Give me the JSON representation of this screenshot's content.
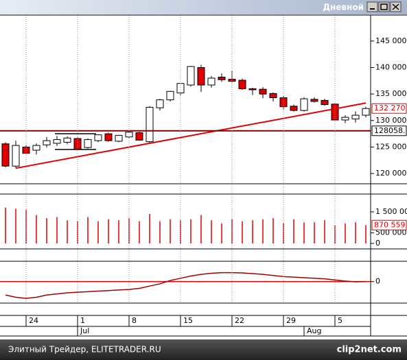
{
  "window": {
    "title": "Дневной"
  },
  "footer": {
    "text": "Элитный Трейдер, ELITETRADER.RU",
    "watermark": "clip2net.com"
  },
  "chart_data": [
    {
      "type": "candlestick",
      "categories": [
        null,
        null,
        "24",
        null,
        null,
        null,
        null,
        "1",
        null,
        null,
        null,
        null,
        "8",
        null,
        null,
        null,
        null,
        "15",
        null,
        null,
        null,
        null,
        "22",
        null,
        null,
        null,
        null,
        "29",
        null,
        null,
        null,
        null,
        "5",
        null,
        null,
        null
      ],
      "months": [
        null,
        null,
        null,
        null,
        null,
        null,
        null,
        "Jul",
        null,
        null,
        null,
        null,
        null,
        null,
        null,
        null,
        null,
        null,
        null,
        null,
        null,
        null,
        null,
        null,
        null,
        null,
        null,
        null,
        null,
        "Aug",
        null,
        null,
        null,
        null,
        null,
        null
      ],
      "open": [
        125600,
        121400,
        125000,
        124400,
        125400,
        125700,
        125900,
        126600,
        124900,
        126200,
        127500,
        126100,
        126900,
        127700,
        126000,
        132400,
        133900,
        135200,
        136700,
        140000,
        136700,
        138200,
        137800,
        137600,
        136000,
        135900,
        135100,
        134300,
        132700,
        131900,
        134000,
        133800,
        133100,
        130100,
        130300,
        131000
      ],
      "high": [
        125900,
        126200,
        125400,
        125700,
        126900,
        127100,
        127000,
        126800,
        126600,
        127400,
        127700,
        127300,
        128100,
        127900,
        132700,
        134100,
        135600,
        137100,
        140300,
        140500,
        138400,
        138900,
        139300,
        137900,
        136200,
        136300,
        135300,
        134600,
        133000,
        134400,
        134400,
        134100,
        133300,
        131000,
        131700,
        132600
      ],
      "low": [
        121200,
        121000,
        123700,
        123600,
        124900,
        125200,
        125500,
        124500,
        124700,
        125900,
        126000,
        125900,
        126700,
        126200,
        125800,
        131900,
        133600,
        134800,
        136400,
        135400,
        136200,
        137300,
        137200,
        135800,
        134800,
        134200,
        133600,
        132100,
        131700,
        131700,
        133400,
        132800,
        129900,
        129500,
        129600,
        130600
      ],
      "close": [
        121400,
        125300,
        123800,
        125300,
        126200,
        126400,
        126700,
        124600,
        126400,
        127300,
        126200,
        127200,
        127800,
        126300,
        132500,
        133900,
        135500,
        137000,
        140200,
        136700,
        138000,
        137700,
        137400,
        136000,
        135800,
        135000,
        134300,
        132600,
        131900,
        134100,
        133600,
        133000,
        130100,
        130600,
        131000,
        132270
      ],
      "up_color": "#ffffff",
      "down_color": "#e00000",
      "ylim": [
        118450,
        149900
      ],
      "yticks": [
        {
          "value": 145000,
          "label": "145 000"
        },
        {
          "value": 140000,
          "label": "140 000"
        },
        {
          "value": 135000,
          "label": "135 000"
        },
        {
          "value": 130000,
          "label": "130 000"
        },
        {
          "value": 125000,
          "label": "125 000"
        },
        {
          "value": 120000,
          "label": "120 000"
        }
      ],
      "grid": true,
      "last_price": {
        "value": 132270,
        "label": "132 270"
      },
      "hline": {
        "value": 128058,
        "label": "128058.",
        "color": "#800000"
      },
      "trend_line": {
        "start_index": 1,
        "start": 121000,
        "end_index": 35,
        "end": 133300,
        "color": "#e00000"
      }
    },
    {
      "type": "bar",
      "values": [
        1700000,
        1650000,
        1600000,
        1350000,
        1200000,
        1250000,
        1100000,
        1050000,
        1250000,
        1050000,
        1150000,
        1100000,
        1200000,
        1050000,
        1400000,
        1050000,
        1150000,
        1100000,
        1150000,
        1350000,
        1100000,
        950000,
        1150000,
        1050000,
        1100000,
        1150000,
        1200000,
        950000,
        1150000,
        1000000,
        1000000,
        1100000,
        850000,
        950000,
        1000000,
        870559
      ],
      "color": "#e00000",
      "ylim": [
        -163000,
        2280000
      ],
      "yticks": [
        {
          "value": 1500000,
          "label": "1 500 000"
        },
        {
          "value": 500000,
          "label": "500 000"
        },
        0
      ],
      "last_value": {
        "value": 870559,
        "label": "870 559"
      }
    },
    {
      "type": "line",
      "values": [
        -1.2,
        -1.4,
        -1.5,
        -1.4,
        -1.2,
        -1.1,
        -1.0,
        -0.95,
        -0.9,
        -0.85,
        -0.8,
        -0.75,
        -0.7,
        -0.6,
        -0.4,
        -0.2,
        0.1,
        0.3,
        0.5,
        0.65,
        0.75,
        0.8,
        0.8,
        0.78,
        0.72,
        0.65,
        0.55,
        0.45,
        0.4,
        0.35,
        0.3,
        0.25,
        0.15,
        0.05,
        -0.02,
        0.0
      ],
      "color": "#a00000",
      "zero_line_color": "#e00000",
      "ylim": [
        -1.8,
        1.7
      ],
      "yticks": [
        0
      ]
    }
  ]
}
